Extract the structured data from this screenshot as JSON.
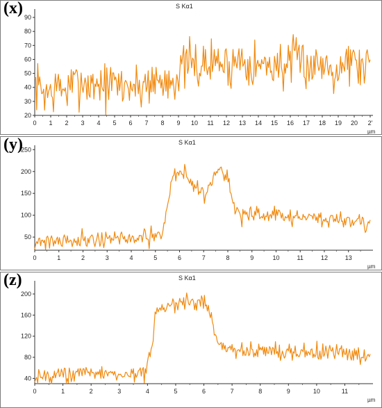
{
  "chart_data": [
    {
      "panel_label": "(x)",
      "type": "line",
      "title": "S Kα1",
      "xunit": "µm",
      "x_ticks": [
        "0",
        "1",
        "2",
        "3",
        "4",
        "5",
        "6",
        "7",
        "8",
        "9",
        "10",
        "11",
        "12",
        "13",
        "14",
        "15",
        "16",
        "17",
        "18",
        "19",
        "20",
        "2'"
      ],
      "y_ticks": [
        "20",
        "30",
        "40",
        "50",
        "60",
        "70",
        "80",
        "90"
      ],
      "xlim": [
        0,
        21
      ],
      "ylim": [
        20,
        96
      ],
      "color": "#f08a10",
      "x": [
        0,
        0.5,
        1,
        1.5,
        2,
        2.5,
        3,
        3.5,
        4,
        4.5,
        5,
        5.5,
        6,
        6.5,
        7,
        7.5,
        8,
        8.5,
        9,
        9.5,
        10,
        10.5,
        11,
        11.5,
        12,
        12.5,
        13,
        13.5,
        14,
        14.5,
        15,
        15.5,
        16,
        16.5,
        17,
        17.5,
        18,
        18.5,
        19,
        19.5,
        20,
        20.5,
        21
      ],
      "values": [
        42,
        38,
        36,
        40,
        38,
        42,
        45,
        41,
        44,
        40,
        43,
        41,
        42,
        39,
        44,
        45,
        43,
        47,
        48,
        57,
        56,
        55,
        57,
        60,
        54,
        58,
        62,
        58,
        55,
        56,
        57,
        55,
        56,
        60,
        57,
        55,
        58,
        56,
        54,
        60,
        58,
        55,
        57
      ],
      "noise": 12,
      "seed": 7
    },
    {
      "panel_label": "(y)",
      "type": "line",
      "title": "S Kα1",
      "xunit": "µm",
      "x_ticks": [
        "0",
        "1",
        "2",
        "3",
        "4",
        "5",
        "6",
        "7",
        "8",
        "9",
        "10",
        "11",
        "12",
        "13"
      ],
      "y_ticks": [
        "50",
        "100",
        "150",
        "200",
        "250"
      ],
      "xlim": [
        0,
        13.9
      ],
      "ylim": [
        20,
        260
      ],
      "color": "#f08a10",
      "x": [
        0,
        0.5,
        1,
        1.5,
        2,
        2.5,
        3,
        3.5,
        4,
        4.5,
        5,
        5.3,
        5.5,
        5.7,
        6,
        6.5,
        7,
        7.3,
        7.6,
        7.9,
        8.2,
        8.5,
        9,
        9.5,
        10,
        10.5,
        11,
        11.5,
        12,
        12.5,
        13,
        13.5,
        13.9
      ],
      "values": [
        40,
        42,
        43,
        44,
        45,
        46,
        47,
        46,
        47,
        47,
        48,
        60,
        120,
        190,
        205,
        175,
        150,
        170,
        215,
        195,
        130,
        100,
        100,
        98,
        100,
        96,
        95,
        93,
        92,
        90,
        88,
        87,
        86
      ],
      "noise": 14,
      "seed": 21
    },
    {
      "panel_label": "(z)",
      "type": "line",
      "title": "S Kα1",
      "xunit": "µm",
      "x_ticks": [
        "0",
        "1",
        "2",
        "3",
        "4",
        "5",
        "6",
        "7",
        "8",
        "9",
        "10",
        "11"
      ],
      "y_ticks": [
        "40",
        "80",
        "120",
        "160",
        "200"
      ],
      "xlim": [
        0,
        11.9
      ],
      "ylim": [
        30,
        225
      ],
      "color": "#f08a10",
      "x": [
        0,
        0.5,
        1,
        1.5,
        2,
        2.5,
        3,
        3.5,
        3.9,
        4.1,
        4.3,
        4.6,
        5,
        5.5,
        6,
        6.2,
        6.4,
        6.6,
        7,
        7.5,
        8,
        8.5,
        9,
        9.5,
        10,
        10.5,
        11,
        11.5,
        11.9
      ],
      "values": [
        45,
        46,
        47,
        48,
        49,
        50,
        48,
        49,
        50,
        85,
        160,
        178,
        180,
        182,
        185,
        170,
        120,
        100,
        95,
        92,
        92,
        92,
        91,
        90,
        91,
        90,
        88,
        86,
        84
      ],
      "noise": 11,
      "seed": 43
    }
  ]
}
